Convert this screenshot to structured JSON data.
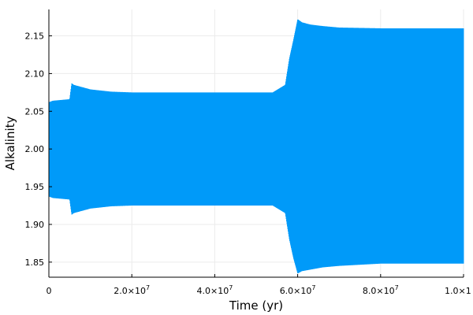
{
  "chart_data": {
    "type": "area",
    "xlabel": "Time (yr)",
    "ylabel": "Alkalinity",
    "xlim": [
      0,
      100000000
    ],
    "ylim": [
      1.83,
      2.185
    ],
    "grid": true,
    "legend": "none",
    "series_color": "#009af9",
    "x_ticks": [
      {
        "value": 0,
        "label": "0",
        "exp": ""
      },
      {
        "value": 20000000,
        "label": "2.0×10",
        "exp": "7"
      },
      {
        "value": 40000000,
        "label": "4.0×10",
        "exp": "7"
      },
      {
        "value": 60000000,
        "label": "6.0×10",
        "exp": "7"
      },
      {
        "value": 80000000,
        "label": "8.0×10",
        "exp": "7"
      },
      {
        "value": 100000000,
        "label": "1.0×1",
        "exp": ""
      }
    ],
    "y_ticks": [
      {
        "value": 1.85,
        "label": "1.85"
      },
      {
        "value": 1.9,
        "label": "1.90"
      },
      {
        "value": 1.95,
        "label": "1.95"
      },
      {
        "value": 2.0,
        "label": "2.00"
      },
      {
        "value": 2.05,
        "label": "2.05"
      },
      {
        "value": 2.1,
        "label": "2.10"
      },
      {
        "value": 2.15,
        "label": "2.15"
      }
    ],
    "envelope": {
      "x": [
        0,
        1000000,
        5000000,
        5500000,
        6000000,
        10000000,
        15000000,
        20000000,
        30000000,
        40000000,
        50000000,
        54000000,
        57000000,
        58000000,
        59000000,
        60000000,
        61000000,
        63000000,
        66000000,
        70000000,
        80000000,
        90000000,
        100000000
      ],
      "upper": [
        2.062,
        2.064,
        2.066,
        2.087,
        2.085,
        2.079,
        2.076,
        2.075,
        2.075,
        2.075,
        2.075,
        2.075,
        2.085,
        2.12,
        2.145,
        2.172,
        2.168,
        2.165,
        2.163,
        2.161,
        2.16,
        2.16,
        2.16
      ],
      "lower": [
        1.937,
        1.935,
        1.933,
        1.913,
        1.915,
        1.921,
        1.924,
        1.925,
        1.925,
        1.925,
        1.925,
        1.925,
        1.915,
        1.88,
        1.855,
        1.835,
        1.838,
        1.84,
        1.843,
        1.845,
        1.848,
        1.848,
        1.848
      ]
    }
  }
}
